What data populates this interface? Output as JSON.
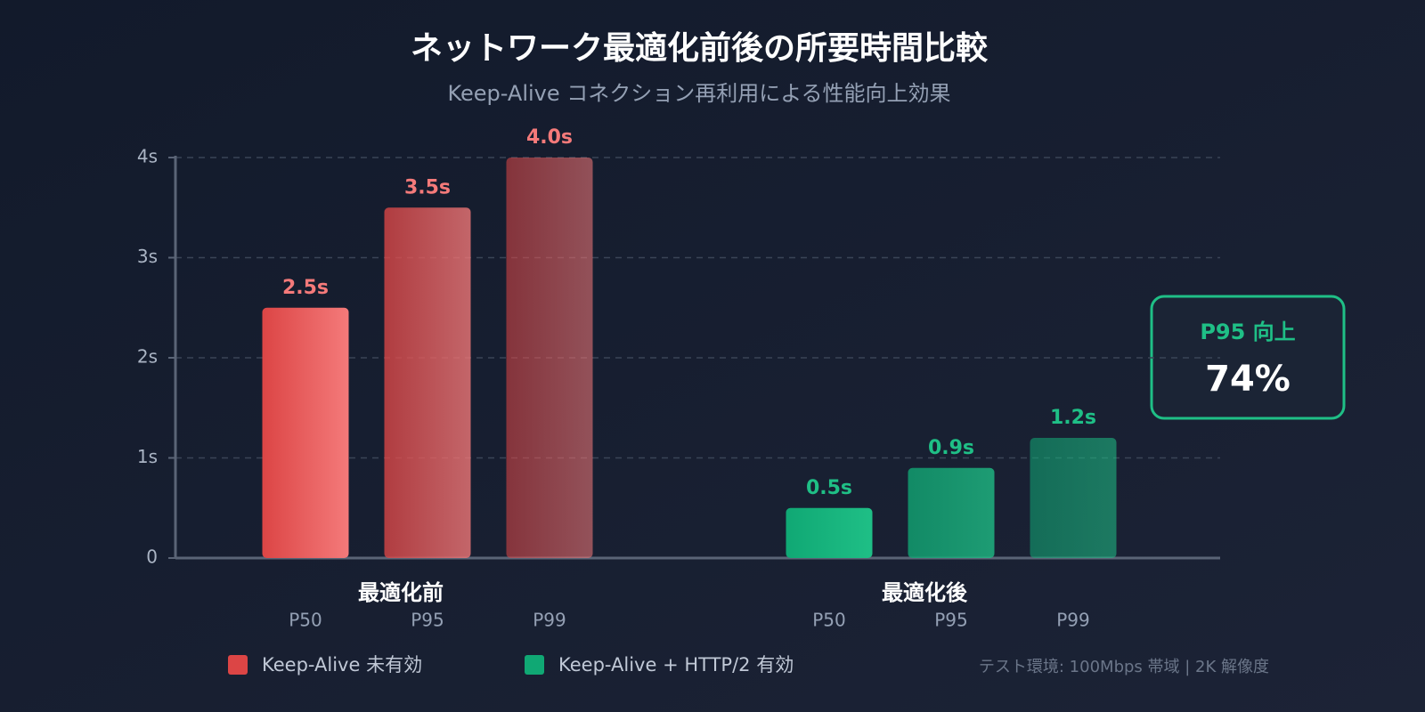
{
  "chart_data": {
    "type": "bar",
    "title": "ネットワーク最適化前後の所要時間比較",
    "subtitle": "Keep-Alive コネクション再利用による性能向上効果",
    "categories": [
      "P50",
      "P95",
      "P99"
    ],
    "series": [
      {
        "name": "Keep-Alive 未有効",
        "group": "最適化前",
        "color": "#dc4545",
        "values": [
          2.5,
          3.5,
          4.0
        ],
        "value_labels": [
          "2.5s",
          "3.5s",
          "4.0s"
        ],
        "label_color": "#f47a7a"
      },
      {
        "name": "Keep-Alive + HTTP/2 有効",
        "group": "最適化後",
        "color": "#10a874",
        "values": [
          0.5,
          0.9,
          1.2
        ],
        "value_labels": [
          "0.5s",
          "0.9s",
          "1.2s"
        ],
        "label_color": "#1fbf86"
      }
    ],
    "ylim": [
      0,
      4
    ],
    "yticks": [
      0,
      {
        "value": 1,
        "label": "1s"
      },
      {
        "value": 2,
        "label": "2s"
      },
      {
        "value": 3,
        "label": "3s"
      },
      {
        "value": 4,
        "label": "4s"
      }
    ],
    "grid": true,
    "callout": {
      "label": "P95 向上",
      "value": 74,
      "value_label": "74%"
    },
    "footnote": "テスト環境: 100Mbps 帯域 | 2K 解像度"
  }
}
